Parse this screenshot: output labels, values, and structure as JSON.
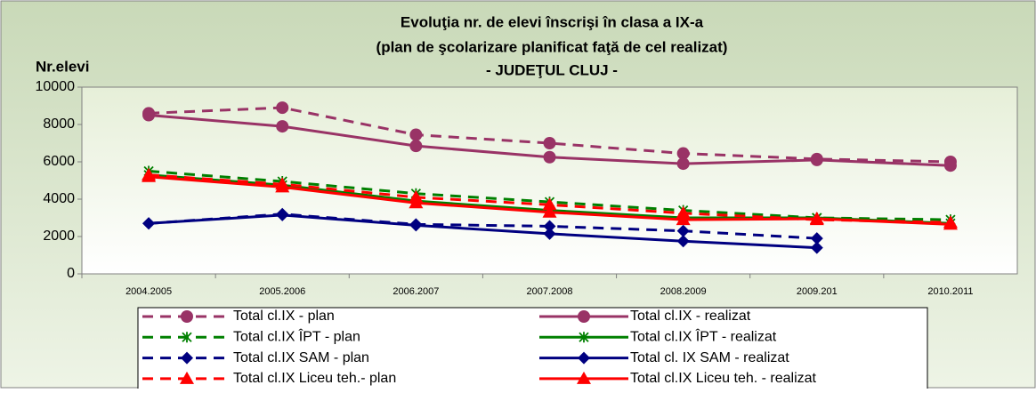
{
  "chart_data": {
    "type": "line",
    "title": "Evoluţia nr. de elevi înscrişi în clasa a IX-a",
    "subtitle": "(plan de şcolarizare planificat faţă de cel realizat)",
    "subtitle2": "- JUDEŢUL CLUJ -",
    "y_label": "Nr.elevi",
    "categories": [
      "2004.2005",
      "2005.2006",
      "2006.2007",
      "2007.2008",
      "2008.2009",
      "2009.201",
      "2010.2011"
    ],
    "ylim": [
      0,
      10000
    ],
    "yticks": [
      0,
      2000,
      4000,
      6000,
      8000,
      10000
    ],
    "series": [
      {
        "name": "Total cl.IX - plan",
        "color": "#993366",
        "dashed": true,
        "marker": "circle",
        "values": [
          8600,
          8900,
          7450,
          7000,
          6450,
          6150,
          6000
        ]
      },
      {
        "name": "Total cl.IX - realizat",
        "color": "#993366",
        "dashed": false,
        "marker": "circle",
        "values": [
          8500,
          7900,
          6850,
          6250,
          5900,
          6100,
          5800
        ]
      },
      {
        "name": "Total cl.IX ÎPT - plan",
        "color": "#008000",
        "dashed": true,
        "marker": "star",
        "values": [
          5500,
          4950,
          4300,
          3850,
          3400,
          3000,
          2900
        ]
      },
      {
        "name": "Total cl.IX ÎPT - realizat",
        "color": "#008000",
        "dashed": false,
        "marker": "star",
        "values": [
          5300,
          4750,
          3900,
          3400,
          3000,
          3000,
          2700
        ]
      },
      {
        "name": "Total cl.IX SAM - plan",
        "color": "#000080",
        "dashed": true,
        "marker": "diamond",
        "values": [
          2700,
          3200,
          2650,
          2550,
          2300,
          1900,
          null
        ]
      },
      {
        "name": "Total cl. IX SAM - realizat",
        "color": "#000080",
        "dashed": false,
        "marker": "diamond",
        "values": [
          2700,
          3150,
          2600,
          2150,
          1750,
          1400,
          null
        ]
      },
      {
        "name": "Total cl.IX Liceu teh.- plan",
        "color": "#ff0000",
        "dashed": true,
        "marker": "triangle",
        "values": [
          5300,
          4800,
          4100,
          3700,
          3250,
          2900,
          2750
        ]
      },
      {
        "name": "Total cl.IX Liceu teh. - realizat",
        "color": "#ff0000",
        "dashed": false,
        "marker": "triangle",
        "values": [
          5200,
          4650,
          3800,
          3300,
          2900,
          2950,
          2650
        ]
      }
    ]
  }
}
